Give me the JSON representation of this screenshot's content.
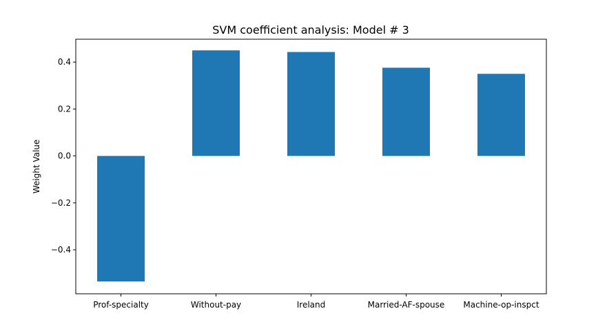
{
  "chart_data": {
    "type": "bar",
    "title": "SVM coefficient analysis: Model # 3",
    "xlabel": "",
    "ylabel": "Weight Value",
    "categories": [
      "Prof-specialty",
      "Without-pay",
      "Ireland",
      "Married-AF-spouse",
      "Machine-op-inspct"
    ],
    "values": [
      -0.535,
      0.45,
      0.443,
      0.376,
      0.35
    ],
    "ylim": [
      -0.5875,
      0.4975
    ],
    "yticks": [
      -0.4,
      -0.2,
      0.0,
      0.2,
      0.4
    ],
    "ytick_labels": [
      "−0.4",
      "−0.2",
      "0.0",
      "0.2",
      "0.4"
    ],
    "bar_color": "#1f77b4",
    "grid": false,
    "legend": "none"
  }
}
